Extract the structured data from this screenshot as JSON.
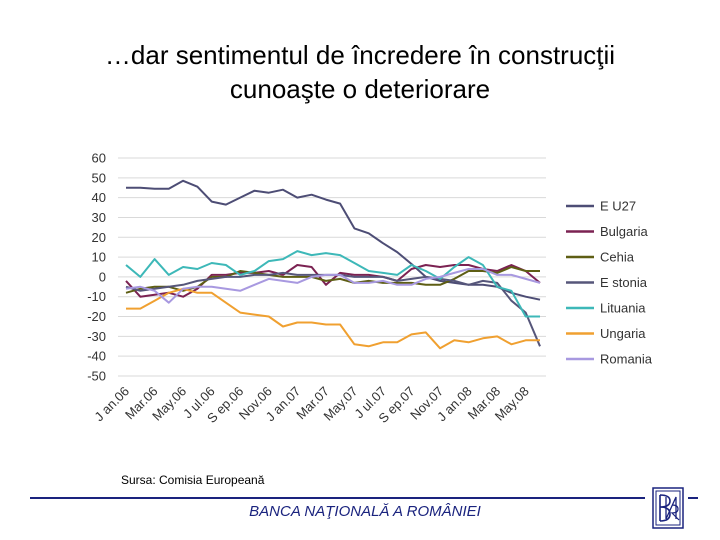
{
  "slide": {
    "title_line1": "…dar sentimentul de încredere în construcţii",
    "title_line2": "cunoaşte o deteriorare",
    "source": "Sursa: Comisia Europeană",
    "footer": "BANCA NAŢIONALĂ A ROMÂNIEI",
    "logo_icon": "bnr-monogram-logo",
    "accent_color": "#1a237e"
  },
  "chart_data": {
    "type": "line",
    "title": "",
    "xlabel": "",
    "ylabel": "",
    "ylim": [
      -50,
      60
    ],
    "yticks": [
      60,
      50,
      40,
      30,
      20,
      10,
      0,
      -10,
      -20,
      -30,
      -40,
      -50
    ],
    "grid": true,
    "legend_position": "right",
    "x": [
      "Jan.06",
      "Feb.06",
      "Mar.06",
      "Apr.06",
      "May.06",
      "Jun.06",
      "Jul.06",
      "Aug.06",
      "Sep.06",
      "Oct.06",
      "Nov.06",
      "Dec.06",
      "Jan.07",
      "Feb.07",
      "Mar.07",
      "Apr.07",
      "May.07",
      "Jun.07",
      "Jul.07",
      "Aug.07",
      "Sep.07",
      "Oct.07",
      "Nov.07",
      "Dec.07",
      "Jan.08",
      "Feb.08",
      "Mar.08",
      "Apr.08",
      "May.08",
      "Jun.08"
    ],
    "tick_labels": [
      "J an.06",
      "Mar.06",
      "May.06",
      "J ul.06",
      "S ep.06",
      "Nov.06",
      "J an.07",
      "Mar.07",
      "May.07",
      "J ul.07",
      "S ep.07",
      "Nov.07",
      "J an.08",
      "Mar.08",
      "May.08"
    ],
    "series": [
      {
        "name": "E U27",
        "color": "#4d4d75",
        "values": [
          45,
          45,
          44.5,
          44.5,
          48.5,
          45.5,
          38,
          36.5,
          40,
          43.5,
          42.5,
          44,
          40,
          41.5,
          39,
          37,
          24.5,
          22,
          17,
          12.5,
          6.5,
          0,
          -2,
          -3,
          -4,
          -4,
          -5,
          -8,
          -10,
          -11.5
        ]
      },
      {
        "name": "Bulgaria",
        "color": "#7b2252",
        "values": [
          -2,
          -10,
          -9,
          -8,
          -10,
          -6,
          1,
          1,
          2,
          2,
          3,
          1,
          6,
          5,
          -4,
          2,
          1,
          1,
          0,
          -2,
          4,
          6,
          5,
          6,
          6,
          4,
          3,
          6,
          3,
          -3
        ]
      },
      {
        "name": "Cehia",
        "color": "#5e5e14",
        "values": [
          -8,
          -6,
          -5,
          -5,
          -7,
          -5,
          0,
          0,
          3,
          2,
          1,
          0,
          0,
          0,
          -2,
          -1,
          -3,
          -2,
          -3,
          -3,
          -3,
          -4,
          -4,
          -1,
          3,
          3,
          2,
          5,
          3,
          3
        ]
      },
      {
        "name": "E stonia",
        "color": "#56567a",
        "values": [
          -5,
          -7,
          -6,
          -5,
          -4,
          -2,
          -1,
          0,
          0,
          1,
          1,
          2,
          1,
          1,
          1,
          1,
          0,
          0,
          0,
          -2,
          -1,
          0,
          -1,
          -2,
          -4,
          -2,
          -3,
          -12,
          -18,
          -35
        ]
      },
      {
        "name": "Lituania",
        "color": "#3db8b8",
        "values": [
          6,
          0,
          9,
          1,
          5,
          4,
          7,
          6,
          1,
          3,
          8,
          9,
          13,
          11,
          12,
          11,
          7,
          3,
          2,
          1,
          6,
          3,
          -1,
          5,
          10,
          6,
          -5,
          -7,
          -20,
          -20
        ]
      },
      {
        "name": "Ungaria",
        "color": "#f0a030",
        "values": [
          -16,
          -16,
          -12,
          -8,
          -6,
          -8,
          -8,
          -13,
          -18,
          -19,
          -20,
          -25,
          -23,
          -23,
          -24,
          -24,
          -34,
          -35,
          -33,
          -33,
          -29,
          -28,
          -36,
          -32,
          -33,
          -31,
          -30,
          -34,
          -32,
          -32
        ]
      },
      {
        "name": "Romania",
        "color": "#a899e0",
        "values": [
          -6,
          -5,
          -7,
          -13,
          -6,
          -5,
          -5,
          -6,
          -7,
          -4,
          -1,
          -2,
          -3,
          0,
          1,
          1,
          -3,
          -3,
          -2,
          -4,
          -4,
          -1,
          0,
          2,
          4,
          4,
          1,
          1,
          -1,
          -3
        ]
      }
    ]
  }
}
